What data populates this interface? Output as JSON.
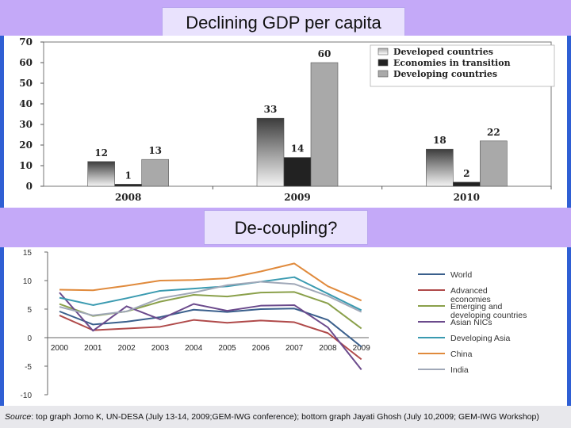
{
  "slide": {
    "title_top": "Declining GDP per capita",
    "title_bottom": "De-coupling?",
    "source_label": "Source",
    "source_text": ": top graph Jomo K, UN-DESA (July 13-14, 2009;GEM-IWG conference); bottom graph Jayati Ghosh (July 10,2009; GEM-IWG Workshop)"
  },
  "colors": {
    "band": "#c4a9f8",
    "background": "#2f5fd4"
  },
  "chart_data": [
    {
      "type": "bar",
      "title": "Declining GDP per capita",
      "categories": [
        "2008",
        "2009",
        "2010"
      ],
      "series": [
        {
          "name": "Developed countries",
          "values": [
            12,
            33,
            18
          ],
          "labels": [
            "12",
            "33",
            "18"
          ],
          "color": "#9a9a9a"
        },
        {
          "name": "Economies in  transition",
          "values": [
            1,
            14,
            2
          ],
          "labels": [
            "1",
            "14",
            "2"
          ],
          "color": "#222222"
        },
        {
          "name": "Developing countries",
          "values": [
            13,
            60,
            22
          ],
          "labels": [
            "13",
            "60",
            "22"
          ],
          "color": "#a9a9a9"
        }
      ],
      "yticks": [
        "0",
        "10",
        "20",
        "30",
        "40",
        "50",
        "60",
        "70"
      ],
      "ylim": [
        0,
        70
      ],
      "legend": "top-right"
    },
    {
      "type": "line",
      "title": "De-coupling?",
      "x": [
        "2000",
        "2001",
        "2002",
        "2003",
        "2004",
        "2005",
        "2006",
        "2007",
        "2008",
        "2009"
      ],
      "yticks": [
        "15",
        "10",
        "5",
        "0",
        "-5",
        "-10"
      ],
      "ylim": [
        -10,
        15
      ],
      "legend": "right",
      "series": [
        {
          "name": "World",
          "color": "#3a5f8c",
          "values": [
            4.6,
            2.3,
            2.8,
            3.6,
            4.9,
            4.5,
            5.0,
            5.1,
            3.1,
            -1.6
          ]
        },
        {
          "name": "Advanced economies",
          "color": "#b04a4a",
          "values": [
            3.9,
            1.3,
            1.6,
            1.9,
            3.1,
            2.6,
            3.0,
            2.7,
            0.8,
            -3.8
          ]
        },
        {
          "name": "Emerging and developing countries",
          "color": "#8aa04a",
          "values": [
            5.9,
            3.8,
            4.6,
            6.3,
            7.5,
            7.2,
            7.9,
            8.0,
            6.0,
            1.6
          ]
        },
        {
          "name": "Asian NICs",
          "color": "#6b4a8c",
          "values": [
            7.9,
            1.2,
            5.5,
            3.2,
            5.9,
            4.7,
            5.6,
            5.7,
            1.8,
            -5.6
          ]
        },
        {
          "name": "Developing Asia",
          "color": "#3a9ab0",
          "values": [
            7.0,
            5.7,
            6.9,
            8.2,
            8.6,
            9.0,
            9.8,
            10.6,
            7.7,
            4.8
          ]
        },
        {
          "name": "China",
          "color": "#e08a3c",
          "values": [
            8.4,
            8.3,
            9.1,
            10.0,
            10.1,
            10.4,
            11.6,
            13.0,
            9.0,
            6.5
          ]
        },
        {
          "name": "India",
          "color": "#a0a8b8",
          "values": [
            5.4,
            3.9,
            4.6,
            6.9,
            7.9,
            9.2,
            9.8,
            9.4,
            7.3,
            4.5
          ]
        }
      ]
    }
  ]
}
